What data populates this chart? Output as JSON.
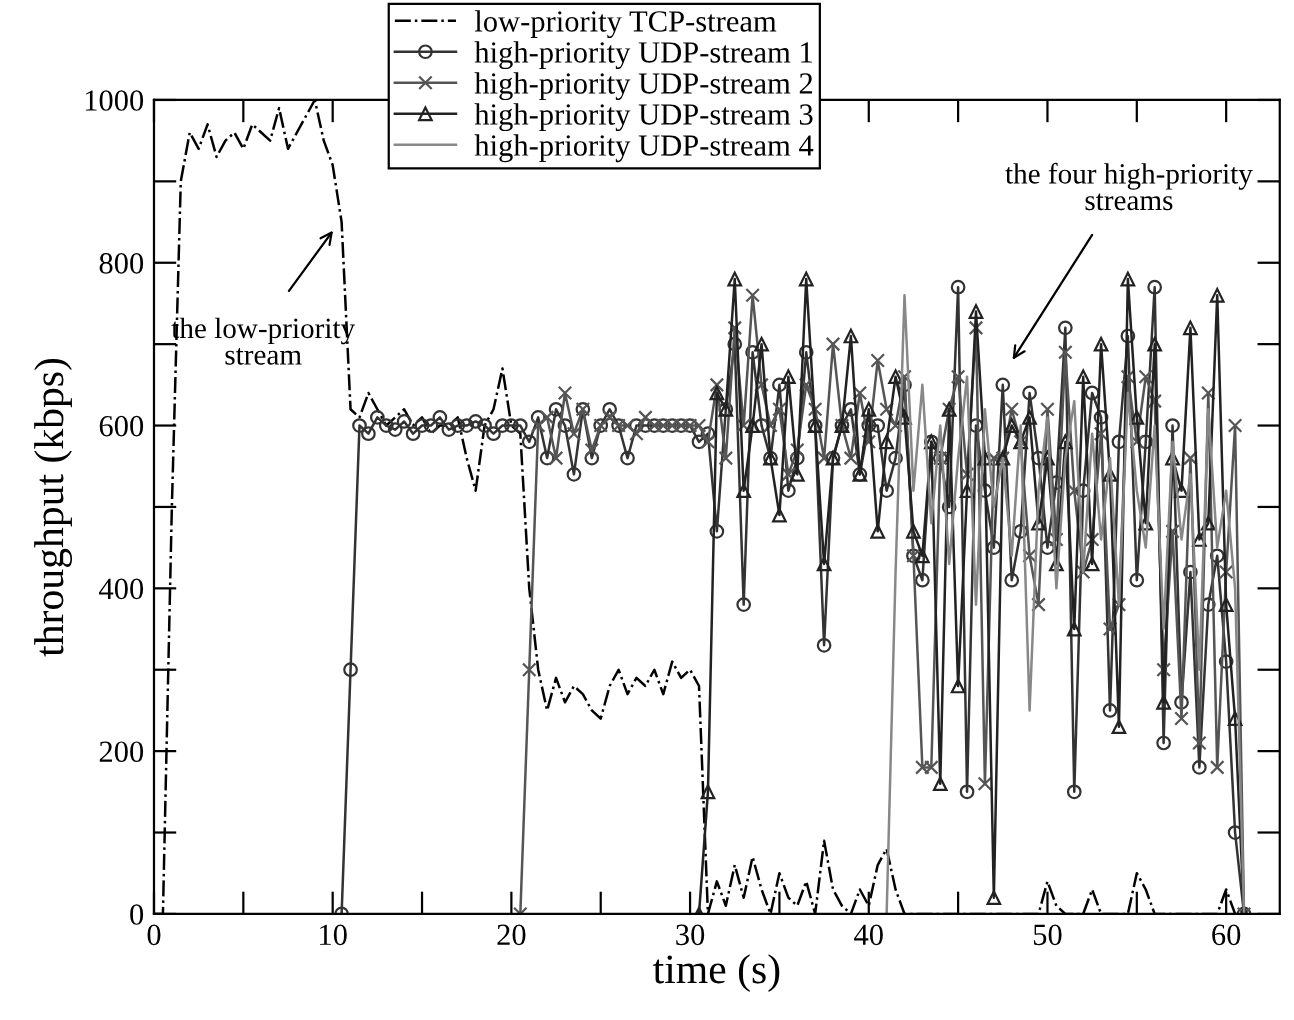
{
  "chart_data": {
    "type": "line",
    "xlabel": "time (s)",
    "ylabel": "throughput (kbps)",
    "xlim": [
      0,
      63
    ],
    "ylim": [
      0,
      1000
    ],
    "xticks": [
      0,
      {
        "value": 5,
        "label": null
      },
      10,
      {
        "value": 15,
        "label": null
      },
      20,
      {
        "value": 25,
        "label": null
      },
      30,
      {
        "value": 35,
        "label": null
      },
      40,
      {
        "value": 45,
        "label": null
      },
      50,
      {
        "value": 55,
        "label": null
      },
      60
    ],
    "yticks": [
      0,
      {
        "value": 100,
        "label": null
      },
      200,
      {
        "value": 300,
        "label": null
      },
      400,
      {
        "value": 500,
        "label": null
      },
      600,
      {
        "value": 700,
        "label": null
      },
      800,
      {
        "value": 900,
        "label": null
      },
      1000
    ],
    "grid": false,
    "legend": "top",
    "annotations": [
      "the low-priority\nstream",
      "the four high-priority\nstreams"
    ],
    "x": [
      0,
      0.5,
      1,
      1.5,
      2,
      2.5,
      3,
      3.5,
      4,
      4.5,
      5,
      5.5,
      6,
      6.5,
      7,
      7.5,
      8,
      8.5,
      9,
      9.5,
      10,
      10.5,
      11,
      11.5,
      12,
      12.5,
      13,
      13.5,
      14,
      14.5,
      15,
      15.5,
      16,
      16.5,
      17,
      17.5,
      18,
      18.5,
      19,
      19.5,
      20,
      20.5,
      21,
      21.5,
      22,
      22.5,
      23,
      23.5,
      24,
      24.5,
      25,
      25.5,
      26,
      26.5,
      27,
      27.5,
      28,
      28.5,
      29,
      29.5,
      30,
      30.5,
      31,
      31.5,
      32,
      32.5,
      33,
      33.5,
      34,
      34.5,
      35,
      35.5,
      36,
      36.5,
      37,
      37.5,
      38,
      38.5,
      39,
      39.5,
      40,
      40.5,
      41,
      41.5,
      42,
      42.5,
      43,
      43.5,
      44,
      44.5,
      45,
      45.5,
      46,
      46.5,
      47,
      47.5,
      48,
      48.5,
      49,
      49.5,
      50,
      50.5,
      51,
      51.5,
      52,
      52.5,
      53,
      53.5,
      54,
      54.5,
      55,
      55.5,
      56,
      56.5,
      57,
      57.5,
      58,
      58.5,
      59,
      59.5,
      60,
      60.5,
      61
    ],
    "series": [
      {
        "name": "low-priority TCP-stream",
        "color": "#000000",
        "marker": "none",
        "line_style": "dashdot",
        "values": [
          0,
          0,
          500,
          900,
          960,
          940,
          970,
          930,
          950,
          960,
          940,
          970,
          960,
          950,
          990,
          940,
          960,
          980,
          1000,
          950,
          920,
          850,
          620,
          610,
          640,
          620,
          600,
          610,
          620,
          600,
          610,
          590,
          600,
          600,
          610,
          560,
          520,
          600,
          620,
          670,
          600,
          590,
          400,
          300,
          250,
          290,
          260,
          280,
          270,
          250,
          240,
          280,
          300,
          270,
          290,
          280,
          300,
          270,
          310,
          290,
          300,
          280,
          0,
          40,
          10,
          60,
          20,
          70,
          30,
          0,
          50,
          20,
          10,
          40,
          0,
          90,
          30,
          10,
          0,
          30,
          10,
          60,
          80,
          30,
          0,
          0,
          0,
          0,
          0,
          0,
          0,
          0,
          0,
          0,
          0,
          0,
          0,
          0,
          0,
          0,
          40,
          10,
          0,
          0,
          0,
          30,
          0,
          0,
          0,
          0,
          50,
          30,
          0,
          0,
          0,
          0,
          0,
          0,
          0,
          0,
          30,
          0,
          0
        ]
      },
      {
        "name": "high-priority UDP-stream 1",
        "color": "#333333",
        "marker": "circle",
        "line_style": "solid",
        "values": [
          null,
          null,
          null,
          null,
          null,
          null,
          null,
          null,
          null,
          null,
          null,
          null,
          null,
          null,
          null,
          null,
          null,
          null,
          null,
          null,
          null,
          0,
          300,
          600,
          590,
          610,
          600,
          595,
          605,
          590,
          600,
          600,
          610,
          595,
          600,
          600,
          605,
          600,
          590,
          600,
          600,
          600,
          580,
          610,
          560,
          620,
          600,
          540,
          620,
          560,
          600,
          620,
          600,
          560,
          600,
          600,
          600,
          600,
          600,
          600,
          600,
          580,
          590,
          470,
          620,
          700,
          380,
          690,
          600,
          560,
          650,
          520,
          560,
          690,
          600,
          330,
          560,
          600,
          620,
          540,
          600,
          600,
          520,
          560,
          650,
          440,
          410,
          580,
          560,
          500,
          770,
          150,
          600,
          520,
          450,
          650,
          410,
          470,
          640,
          560,
          450,
          530,
          720,
          150,
          520,
          640,
          610,
          250,
          580,
          710,
          410,
          580,
          770,
          210,
          600,
          260,
          420,
          180,
          380,
          440,
          310,
          100,
          0
        ]
      },
      {
        "name": "high-priority UDP-stream 2",
        "color": "#555555",
        "marker": "cross",
        "line_style": "solid",
        "values": [
          null,
          null,
          null,
          null,
          null,
          null,
          null,
          null,
          null,
          null,
          null,
          null,
          null,
          null,
          null,
          null,
          null,
          null,
          null,
          null,
          null,
          null,
          null,
          null,
          null,
          null,
          null,
          null,
          null,
          null,
          null,
          null,
          null,
          null,
          null,
          null,
          null,
          null,
          null,
          null,
          null,
          0,
          300,
          600,
          610,
          560,
          640,
          590,
          620,
          570,
          600,
          610,
          600,
          600,
          590,
          610,
          600,
          600,
          600,
          600,
          600,
          600,
          580,
          650,
          560,
          720,
          600,
          760,
          650,
          600,
          620,
          540,
          570,
          650,
          620,
          560,
          700,
          600,
          560,
          640,
          580,
          680,
          620,
          600,
          660,
          440,
          180,
          180,
          560,
          620,
          660,
          540,
          720,
          160,
          560,
          560,
          620,
          580,
          440,
          380,
          620,
          460,
          690,
          520,
          420,
          460,
          590,
          350,
          380,
          660,
          580,
          660,
          630,
          300,
          470,
          240,
          560,
          210,
          640,
          180,
          420,
          600,
          0
        ]
      },
      {
        "name": "high-priority UDP-stream 3",
        "color": "#222222",
        "marker": "triangle",
        "line_style": "solid",
        "values": [
          null,
          null,
          null,
          null,
          null,
          null,
          null,
          null,
          null,
          null,
          null,
          null,
          null,
          null,
          null,
          null,
          null,
          null,
          null,
          null,
          null,
          null,
          null,
          null,
          null,
          null,
          null,
          null,
          null,
          null,
          null,
          null,
          null,
          null,
          null,
          null,
          null,
          null,
          null,
          null,
          null,
          null,
          null,
          null,
          null,
          null,
          null,
          null,
          null,
          null,
          null,
          null,
          null,
          null,
          null,
          null,
          null,
          null,
          null,
          null,
          null,
          0,
          150,
          640,
          620,
          780,
          520,
          600,
          700,
          560,
          490,
          660,
          540,
          780,
          600,
          430,
          560,
          600,
          710,
          540,
          620,
          470,
          580,
          660,
          610,
          470,
          440,
          580,
          160,
          620,
          280,
          520,
          740,
          560,
          20,
          560,
          600,
          580,
          610,
          480,
          560,
          430,
          580,
          350,
          660,
          430,
          700,
          540,
          230,
          780,
          610,
          480,
          700,
          260,
          560,
          520,
          720,
          460,
          480,
          760,
          380,
          240,
          0
        ]
      },
      {
        "name": "high-priority UDP-stream 4",
        "color": "#888888",
        "marker": "none",
        "line_style": "solid",
        "values": [
          null,
          null,
          null,
          null,
          null,
          null,
          null,
          null,
          null,
          null,
          null,
          null,
          null,
          null,
          null,
          null,
          null,
          null,
          null,
          null,
          null,
          null,
          null,
          null,
          null,
          null,
          null,
          null,
          null,
          null,
          null,
          null,
          null,
          null,
          null,
          null,
          null,
          null,
          null,
          null,
          null,
          null,
          null,
          null,
          null,
          null,
          null,
          null,
          null,
          null,
          null,
          null,
          null,
          null,
          null,
          null,
          null,
          null,
          null,
          null,
          null,
          null,
          null,
          null,
          null,
          null,
          null,
          null,
          null,
          null,
          null,
          null,
          null,
          null,
          null,
          null,
          null,
          null,
          null,
          null,
          null,
          null,
          0,
          420,
          760,
          520,
          650,
          480,
          600,
          430,
          560,
          660,
          380,
          620,
          500,
          560,
          440,
          600,
          250,
          520,
          610,
          400,
          560,
          630,
          420,
          590,
          460,
          560,
          380,
          640,
          520,
          450,
          600,
          350,
          580,
          460,
          540,
          300,
          620,
          450,
          520,
          400,
          0
        ]
      }
    ]
  }
}
